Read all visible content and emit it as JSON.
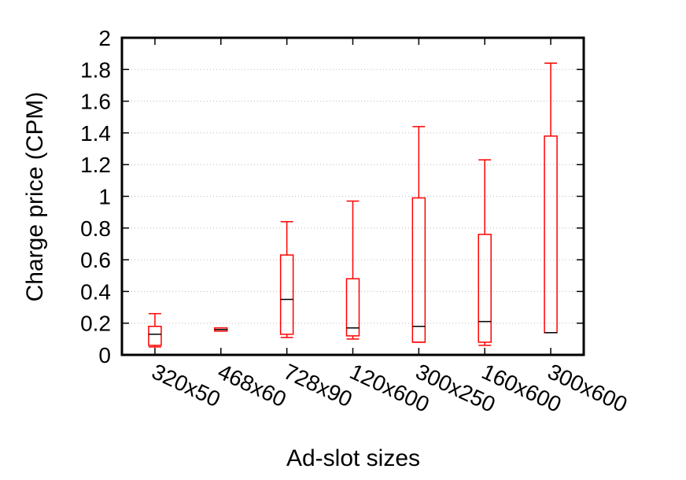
{
  "chart_data": {
    "type": "box",
    "xlabel": "Ad-slot sizes",
    "ylabel": "Charge price (CPM)",
    "categories": [
      "320x50",
      "468x60",
      "728x90",
      "120x600",
      "300x250",
      "160x600",
      "300x600"
    ],
    "min": [
      0.05,
      0.15,
      0.11,
      0.1,
      0.08,
      0.06,
      0.14
    ],
    "q1": [
      0.06,
      0.15,
      0.13,
      0.12,
      0.08,
      0.08,
      0.14
    ],
    "median": [
      0.13,
      0.16,
      0.35,
      0.17,
      0.18,
      0.21,
      0.14
    ],
    "q3": [
      0.18,
      0.17,
      0.63,
      0.48,
      0.99,
      0.76,
      1.38
    ],
    "max": [
      0.26,
      0.17,
      0.84,
      0.97,
      1.44,
      1.23,
      1.84
    ],
    "color": "#ff0000",
    "median_color": "#000000",
    "ylim": [
      0,
      2
    ],
    "yticks": [
      0,
      0.2,
      0.4,
      0.6,
      0.8,
      1,
      1.2,
      1.4,
      1.6,
      1.8,
      2
    ],
    "grid": true
  }
}
